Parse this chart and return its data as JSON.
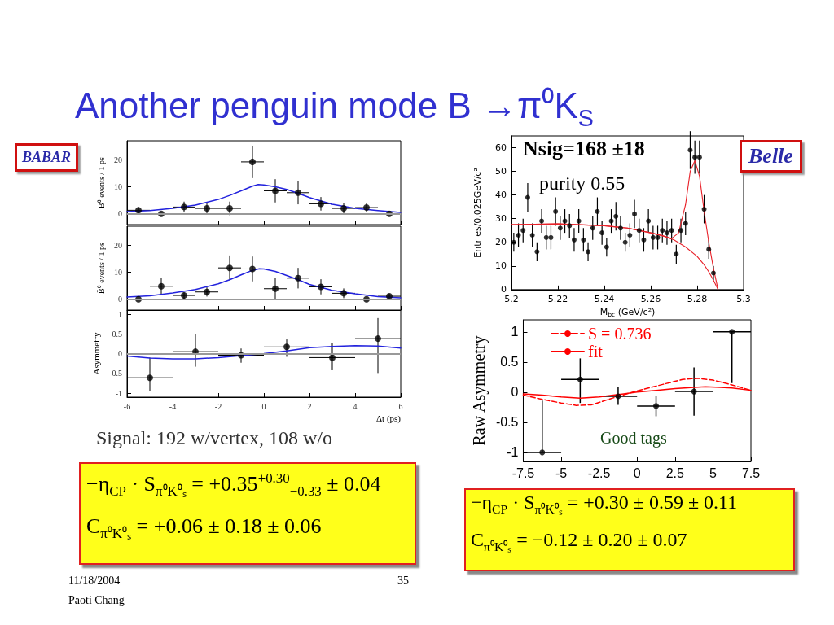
{
  "chart_data": [
    {
      "type": "scatter",
      "title": "Another penguin mode B →π⁰K$_{S}$",
      "ylabel": "B⁰ events / 1 ps",
      "xlim": [
        -6,
        6
      ],
      "xticks": [
        -6,
        -4,
        -2,
        0,
        2,
        4,
        6
      ],
      "ylim": [
        -4,
        27
      ],
      "yticks": [
        0,
        10,
        20
      ],
      "tick_labels": "y",
      "marker": "circle",
      "ref_lines": [
        {
          "axis": "y",
          "value": 0,
          "color": "#999999"
        }
      ],
      "annotations": [
        "BABAR",
        "11/18/2004",
        "Paoti Chang",
        "35"
      ],
      "series": [
        {
          "color": "#000000",
          "x": [
            -5.5,
            -4.5,
            -3.5,
            -2.5,
            -1.5,
            -0.5,
            0.5,
            1.5,
            2.5,
            3.5,
            4.5,
            5.5
          ],
          "values": [
            1.3,
            0,
            2.5,
            2,
            2,
            19.2,
            8.5,
            7.8,
            3.7,
            2,
            2.3,
            0
          ],
          "errors": [
            1.2,
            null,
            2,
            2,
            2.5,
            6,
            4.3,
            4.3,
            2.5,
            2,
            1.7,
            null
          ],
          "xerrors": [
            0.5,
            null,
            0.5,
            0.5,
            0.5,
            0.5,
            0.5,
            0.5,
            0.5,
            0.5,
            0.5,
            null
          ]
        },
        {
          "type": "line",
          "color": "#2222dd",
          "marker": "none",
          "x": [
            -6,
            -5,
            -4,
            -3,
            -2,
            -1.5,
            -1,
            -0.5,
            -0.25,
            0,
            0.5,
            1,
            1.5,
            2,
            3,
            4,
            5,
            6
          ],
          "values": [
            0.8,
            1.2,
            2,
            3.2,
            5.3,
            6.8,
            8.5,
            10.2,
            10.8,
            10.7,
            10,
            9,
            7.6,
            6,
            3.5,
            2,
            1.2,
            0.5
          ]
        }
      ]
    },
    {
      "type": "scatter",
      "ylabel": "B̄⁰ events / 1 ps",
      "xlim": [
        -6,
        6
      ],
      "xticks": [
        -6,
        -4,
        -2,
        0,
        2,
        4,
        6
      ],
      "ylim": [
        -4,
        27
      ],
      "yticks": [
        0,
        10,
        20
      ],
      "tick_labels": "y",
      "marker": "circle",
      "ref_lines": [
        {
          "axis": "y",
          "value": 0,
          "color": "#999999"
        }
      ],
      "series": [
        {
          "color": "#000000",
          "x": [
            -5.5,
            -4.5,
            -3.5,
            -2.5,
            -1.5,
            -0.5,
            0.5,
            1.5,
            2.5,
            3.5,
            4.5,
            5.5
          ],
          "values": [
            0,
            4.8,
            1.4,
            2.7,
            11.6,
            11.2,
            3.9,
            7.8,
            4.6,
            2.2,
            0,
            1.1
          ],
          "errors": [
            null,
            3,
            1.2,
            1.7,
            4.6,
            4.6,
            3.9,
            3.8,
            2.8,
            1.8,
            null,
            1
          ],
          "xerrors": [
            null,
            0.5,
            0.5,
            0.5,
            0.5,
            0.5,
            0.5,
            0.5,
            0.5,
            0.5,
            null,
            0.5
          ]
        },
        {
          "type": "line",
          "color": "#2222dd",
          "marker": "none",
          "x": [
            -6,
            -5,
            -4,
            -3,
            -2,
            -1.5,
            -1,
            -0.5,
            -0.2,
            0,
            0.5,
            1,
            1.5,
            2,
            3,
            4,
            5,
            6
          ],
          "values": [
            0.8,
            1.3,
            2.3,
            3.6,
            5.7,
            7.2,
            9,
            10.7,
            11.3,
            11.2,
            10.3,
            8.8,
            7.2,
            5.5,
            3.3,
            2,
            1,
            0.5
          ]
        }
      ]
    },
    {
      "type": "scatter",
      "ylabel": "Asymmetry",
      "xlabel": "Δt (ps)",
      "xlim": [
        -6,
        6
      ],
      "xticks": [
        -6,
        -4,
        -2,
        0,
        2,
        4,
        6
      ],
      "ylim": [
        -1.1,
        1.1
      ],
      "yticks": [
        -1,
        -0.5,
        0,
        0.5,
        1
      ],
      "marker": "circle",
      "ref_lines": [
        {
          "axis": "y",
          "value": 0,
          "color": "#999999"
        }
      ],
      "annotations": [
        "Signal: 192 w/vertex, 108 w/o",
        "−η$_{CP}$ · S$_{π⁰K⁰ₛ}$ = +0.35$^{+0.30}$$_{−0.33}$ ± 0.04",
        "C$_{π⁰K⁰ₛ}$ = +0.06 ± 0.18 ± 0.06"
      ],
      "series": [
        {
          "color": "#000000",
          "x": [
            -5,
            -3,
            -1,
            1,
            3,
            5
          ],
          "values": [
            -0.61,
            0.05,
            -0.04,
            0.17,
            -0.1,
            0.38
          ],
          "errors": [
            [
              -0.95,
              -0.1
            ],
            [
              -0.33,
              0.5
            ],
            [
              -0.23,
              0.13
            ],
            [
              -0.08,
              0.36
            ],
            [
              -0.42,
              0.26
            ],
            [
              -0.49,
              0.9
            ]
          ],
          "xerrors": [
            1,
            1,
            1,
            1,
            1,
            1
          ]
        },
        {
          "type": "line",
          "color": "#2222dd",
          "marker": "none",
          "x": [
            -6,
            -5,
            -4,
            -3,
            -2,
            -1,
            0,
            1,
            2,
            3,
            4,
            5,
            6
          ],
          "values": [
            -0.06,
            -0.11,
            -0.13,
            -0.13,
            -0.1,
            -0.05,
            0,
            0.07,
            0.15,
            0.18,
            0.2,
            0.19,
            0.14
          ]
        }
      ]
    },
    {
      "type": "scatter",
      "xlabel": "M$_{bc}$ (GeV/c²)",
      "ylabel": "Entries/0.025GeV/c²",
      "xlim": [
        5.2,
        5.3
      ],
      "xticks": [
        5.2,
        5.22,
        5.24,
        5.26,
        5.28,
        5.3
      ],
      "ylim": [
        0,
        65
      ],
      "yticks": [
        0,
        10,
        20,
        30,
        40,
        50,
        60
      ],
      "marker": "circle",
      "annotations": [
        "Nsig=168 ±18",
        "purity 0.55",
        "Belle"
      ],
      "series": [
        {
          "color": "#000000",
          "x": [
            5.201,
            5.203,
            5.205,
            5.207,
            5.209,
            5.211,
            5.213,
            5.215,
            5.217,
            5.219,
            5.221,
            5.223,
            5.225,
            5.227,
            5.229,
            5.231,
            5.233,
            5.235,
            5.237,
            5.239,
            5.241,
            5.243,
            5.245,
            5.247,
            5.249,
            5.251,
            5.253,
            5.255,
            5.257,
            5.259,
            5.261,
            5.263,
            5.265,
            5.267,
            5.269,
            5.271,
            5.273,
            5.275,
            5.277,
            5.279,
            5.281,
            5.283,
            5.285,
            5.287
          ],
          "values": [
            20,
            23,
            25,
            39,
            23,
            16,
            29,
            22,
            22,
            33,
            26,
            29,
            27,
            21,
            29,
            21,
            16,
            26,
            33,
            24,
            18,
            29,
            31,
            26,
            20,
            23,
            32,
            25,
            21,
            29,
            22,
            22,
            25,
            24,
            25,
            15,
            25,
            28,
            59,
            56,
            56,
            34,
            17,
            7
          ],
          "errors": [
            4,
            5,
            5,
            6,
            5,
            4,
            5,
            5,
            5,
            6,
            5,
            5,
            5,
            5,
            5,
            5,
            4,
            5,
            6,
            5,
            4,
            5,
            6,
            5,
            4,
            5,
            6,
            5,
            5,
            5,
            5,
            5,
            5,
            5,
            5,
            4,
            5,
            5,
            8,
            7,
            7,
            6,
            4,
            3
          ]
        },
        {
          "type": "line",
          "color": "#e8222a",
          "marker": "none",
          "x": [
            5.2,
            5.22,
            5.24,
            5.25,
            5.26,
            5.265,
            5.269,
            5.272,
            5.275,
            5.277,
            5.279,
            5.281,
            5.283,
            5.285,
            5.287,
            5.289
          ],
          "values": [
            27.5,
            27.8,
            27,
            26,
            24,
            22.8,
            21.6,
            24,
            36,
            50,
            54.5,
            48,
            33,
            20,
            9,
            0
          ]
        },
        {
          "type": "line",
          "color": "#e8222a",
          "marker": "none",
          "x": [
            5.2,
            5.22,
            5.24,
            5.25,
            5.26,
            5.265,
            5.27,
            5.275,
            5.28,
            5.283,
            5.285,
            5.287,
            5.289
          ],
          "values": [
            27.5,
            27.8,
            27,
            26,
            24,
            22.8,
            21,
            18,
            14,
            10.5,
            7.5,
            4,
            0
          ]
        }
      ]
    },
    {
      "type": "scatter",
      "ylabel": "Raw Asymmetry",
      "xlim": [
        -7.5,
        7.5
      ],
      "xticks": [
        -7.5,
        -5,
        -2.5,
        0,
        2.5,
        5,
        7.5
      ],
      "ylim": [
        -1.15,
        1.2
      ],
      "yticks": [
        -1,
        -0.5,
        0,
        0.5,
        1
      ],
      "marker": "circle",
      "legend": "top left",
      "annotations": [
        "Good tags",
        "−η$_{CP}$ · S$_{π⁰K⁰ₛ}$ = +0.30 ± 0.59 ± 0.11",
        "C$_{π⁰K⁰ₛ}$ = −0.12 ± 0.20 ± 0.07"
      ],
      "series": [
        {
          "color": "#000000",
          "x": [
            -6.25,
            -3.75,
            -1.25,
            1.25,
            3.75,
            6.25
          ],
          "values": [
            -1,
            0.21,
            -0.07,
            -0.23,
            0.01,
            1
          ],
          "errors": [
            [
              -1,
              -0.14
            ],
            [
              -0.18,
              0.56
            ],
            [
              -0.21,
              0.09
            ],
            [
              -0.4,
              -0.06
            ],
            [
              -0.39,
              0.41
            ],
            [
              0.15,
              1
            ]
          ],
          "xerrors": [
            1.25,
            1.25,
            1.25,
            1.25,
            1.25,
            1.25
          ]
        },
        {
          "type": "line",
          "name": "S = 0.736",
          "color": "#ff0000",
          "marker": "none",
          "line_style": "dashed",
          "x": [
            -7.5,
            -6.25,
            -5,
            -4,
            -3,
            -2.5,
            -1.25,
            0,
            1.25,
            2.5,
            3,
            4,
            5,
            6.25,
            7.5
          ],
          "values": [
            -0.05,
            -0.12,
            -0.18,
            -0.22,
            -0.21,
            -0.17,
            -0.07,
            0.02,
            0.1,
            0.18,
            0.21,
            0.23,
            0.2,
            0.12,
            0.03
          ]
        },
        {
          "type": "line",
          "name": "fit",
          "color": "#ff0000",
          "marker": "none",
          "line_style": "solid",
          "x": [
            -7.5,
            -6.25,
            -5,
            -3.75,
            -2.5,
            -1.25,
            0,
            1.25,
            2.5,
            3.75,
            4.5,
            5.5,
            6.25,
            7.5
          ],
          "values": [
            -0.03,
            -0.05,
            -0.08,
            -0.1,
            -0.08,
            -0.04,
            0,
            0.03,
            0.06,
            0.08,
            0.09,
            0.08,
            0.07,
            0.03
          ]
        }
      ]
    }
  ]
}
